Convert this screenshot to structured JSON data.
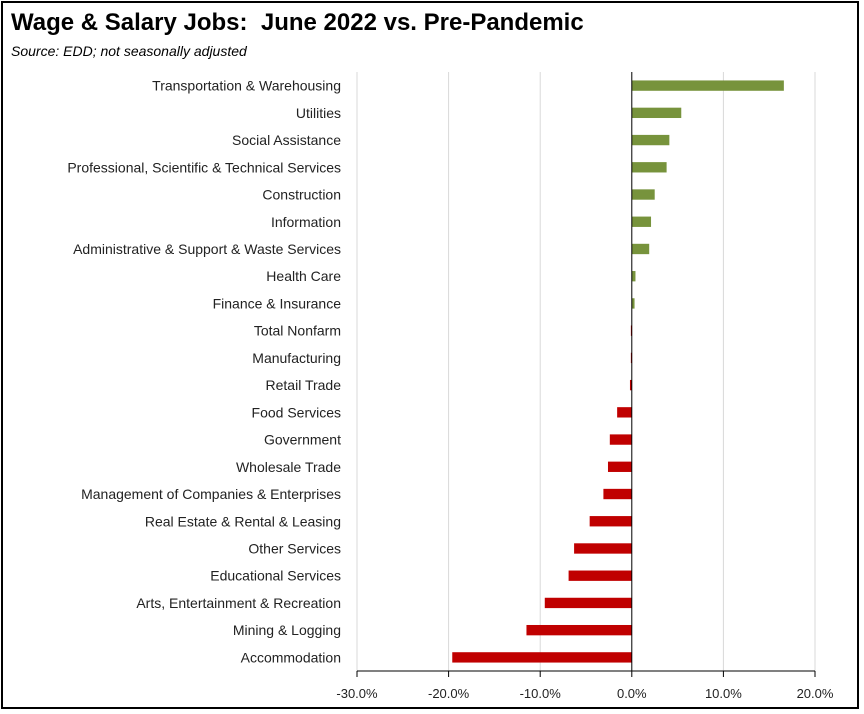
{
  "chart_data": {
    "type": "bar",
    "orientation": "horizontal",
    "title": "Wage & Salary Jobs:  June 2022 vs. Pre-Pandemic",
    "subtitle": "Source:  EDD; not seasonally adjusted",
    "categories": [
      "Transportation & Warehousing",
      "Utilities",
      "Social Assistance",
      "Professional, Scientific & Technical Services",
      "Construction",
      "Information",
      "Administrative & Support & Waste Services",
      "Health Care",
      "Finance & Insurance",
      "Total Nonfarm",
      "Manufacturing",
      "Retail Trade",
      "Food Services",
      "Government",
      "Wholesale Trade",
      "Management of Companies & Enterprises",
      "Real Estate & Rental & Leasing",
      "Other Services",
      "Educational Services",
      "Arts, Entertainment & Recreation",
      "Mining & Logging",
      "Accommodation"
    ],
    "values": [
      16.6,
      5.4,
      4.1,
      3.8,
      2.5,
      2.1,
      1.9,
      0.4,
      0.3,
      -0.1,
      -0.1,
      -0.2,
      -1.6,
      -2.4,
      -2.6,
      -3.1,
      -4.6,
      -6.3,
      -6.9,
      -9.5,
      -11.5,
      -19.6
    ],
    "xlim": [
      -30,
      20
    ],
    "xticks": [
      -30,
      -20,
      -10,
      0,
      10,
      20
    ],
    "xtick_labels": [
      "-30.0%",
      "-20.0%",
      "-10.0%",
      "0.0%",
      "10.0%",
      "20.0%"
    ],
    "xlabel": "",
    "ylabel": "",
    "grid": "vertical",
    "colors": {
      "positive": "#77933c",
      "negative": "#c00000",
      "grid": "#d9d9d9",
      "axis": "#000000"
    }
  }
}
